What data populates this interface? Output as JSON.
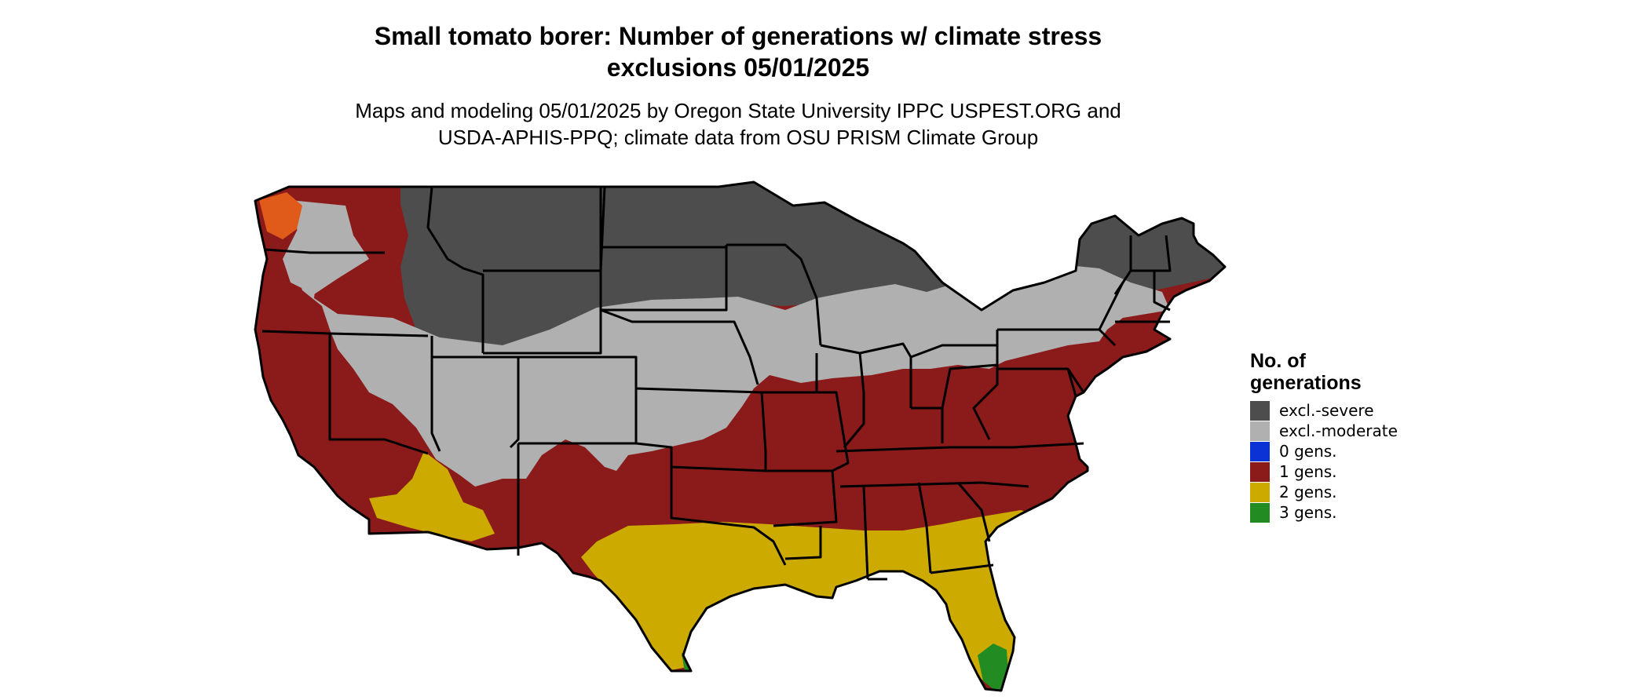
{
  "header": {
    "title_line1": "Small tomato borer: Number of generations w/ climate stress",
    "title_line2": "exclusions 05/01/2025",
    "subtitle_line1": "Maps and modeling 05/01/2025 by Oregon State University IPPC USPEST.ORG and",
    "subtitle_line2": "USDA-APHIS-PPQ; climate data from OSU PRISM Climate Group"
  },
  "legend": {
    "title_line1": "No. of",
    "title_line2": "generations",
    "items": [
      {
        "label": "excl.-severe",
        "color": "#4d4d4d"
      },
      {
        "label": "excl.-moderate",
        "color": "#b0b0b0"
      },
      {
        "label": "0 gens.",
        "color": "#0a32d4"
      },
      {
        "label": "1 gens.",
        "color": "#8b1a1a"
      },
      {
        "label": "2 gens.",
        "color": "#ccaa00"
      },
      {
        "label": "3 gens.",
        "color": "#228b22"
      }
    ]
  },
  "map": {
    "region": "contiguous-united-states",
    "colors": {
      "excl_severe": "#4d4d4d",
      "excl_moderate": "#b0b0b0",
      "gens_1": "#8b1a1a",
      "gens_2": "#ccaa00",
      "gens_3": "#228b22",
      "hot_spot": "#e05a1a",
      "border": "#000000"
    }
  }
}
